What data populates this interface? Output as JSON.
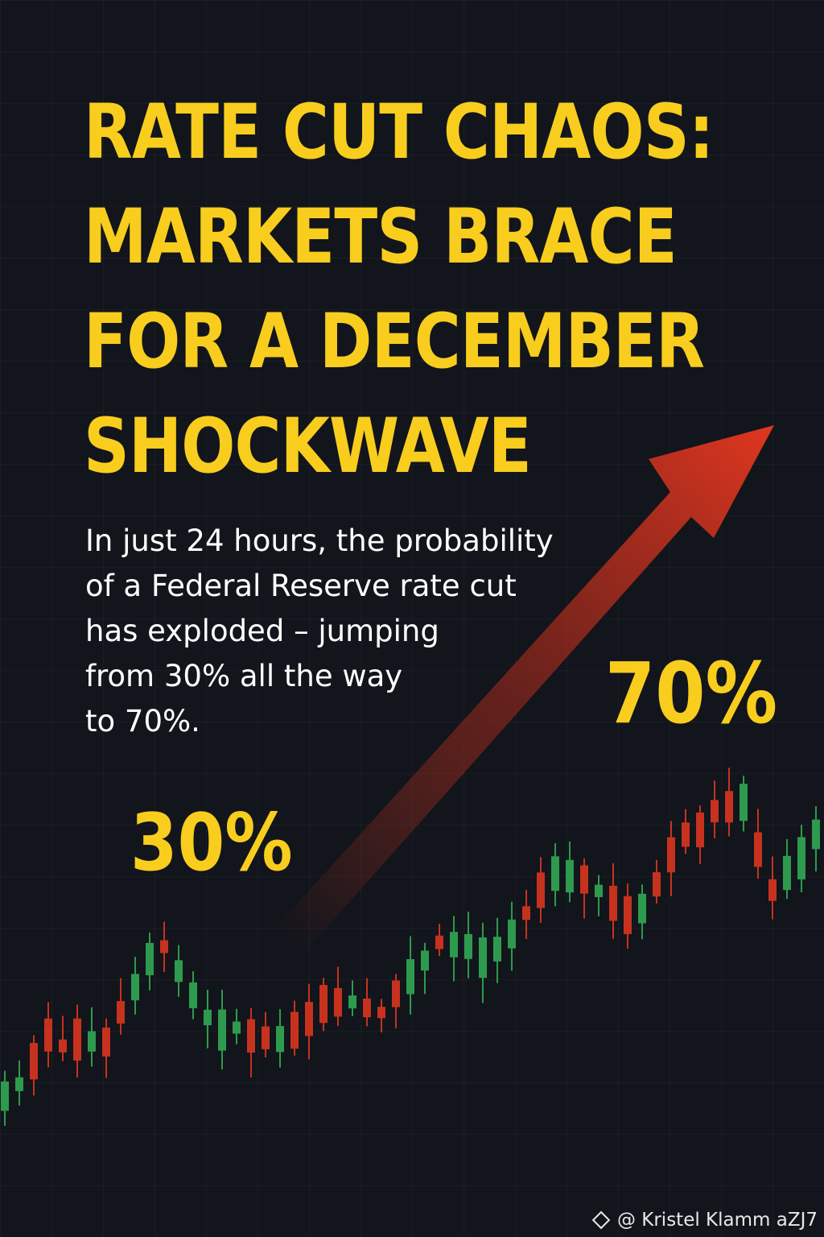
{
  "headline": {
    "lines": [
      "RATE CUT CHAOS:",
      "MARKETS BRACE",
      "FOR A DECEMBER",
      "SHOCKWAVE"
    ]
  },
  "body_text": {
    "lines": [
      "In just 24 hours, the probability",
      "of a Federal Reserve rate cut",
      "has exploded – jumping",
      "from 30% all the way",
      "to 70%."
    ]
  },
  "probability": {
    "start_label": "30%",
    "end_label": "70%",
    "start_value": 30,
    "end_value": 70
  },
  "credit": {
    "icon": "binance-logo-icon",
    "text": "@ Kristel Klamm aZJ7"
  },
  "colors": {
    "background": "#12151b",
    "accent_yellow": "#f8cd1e",
    "arrow_red": "#d93a25",
    "candle_up": "#2e9a4e",
    "candle_down": "#c7321f"
  }
}
